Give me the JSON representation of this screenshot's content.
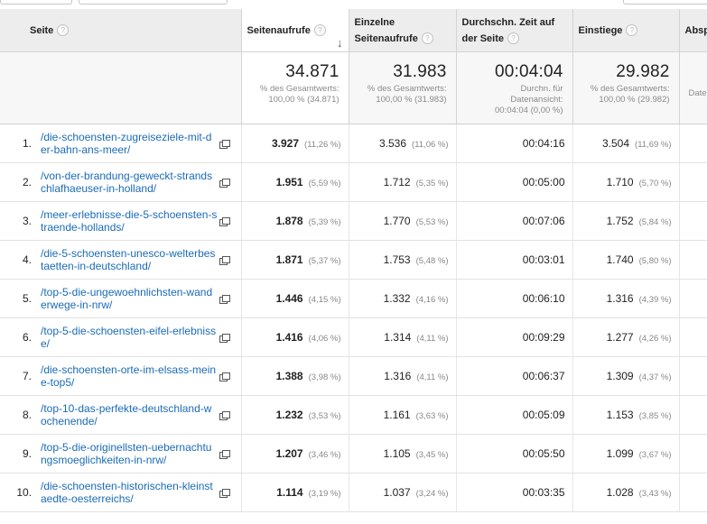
{
  "columns": {
    "page": "Seite",
    "pageviews": "Seitenaufrufe",
    "unique_pageviews": "Einzelne Seitenaufrufe",
    "avg_time": "Durchschn. Zeit auf der Seite",
    "entrances": "Einstiege",
    "bounces": "Absp"
  },
  "totals": {
    "pageviews": "34.871",
    "pageviews_sub1": "% des Gesamtwerts:",
    "pageviews_sub2": "100,00 % (34.871)",
    "unique_pageviews": "31.983",
    "unique_sub1": "% des Gesamtwerts:",
    "unique_sub2": "100,00 % (31.983)",
    "avg_time": "00:04:04",
    "avg_sub1": "Durchn. für",
    "avg_sub2": "Datenansicht:",
    "avg_sub3": "00:04:04 (0,00 %)",
    "entrances": "29.982",
    "entrances_sub1": "% des Gesamtwerts:",
    "entrances_sub2": "100,00 % (29.982)",
    "bounces_sub": "Date"
  },
  "rows": [
    {
      "idx": "1.",
      "page": "/die-schoensten-zugreiseziele-mit-der-bahn-ans-meer/",
      "pv": "3.927",
      "pv_pct": "(11,26 %)",
      "upv": "3.536",
      "upv_pct": "(11,06 %)",
      "time": "00:04:16",
      "ent": "3.504",
      "ent_pct": "(11,69 %)"
    },
    {
      "idx": "2.",
      "page": "/von-der-brandung-geweckt-strandschlafhaeuser-in-holland/",
      "pv": "1.951",
      "pv_pct": "(5,59 %)",
      "upv": "1.712",
      "upv_pct": "(5,35 %)",
      "time": "00:05:00",
      "ent": "1.710",
      "ent_pct": "(5,70 %)"
    },
    {
      "idx": "3.",
      "page": "/meer-erlebnisse-die-5-schoensten-straende-hollands/",
      "pv": "1.878",
      "pv_pct": "(5,39 %)",
      "upv": "1.770",
      "upv_pct": "(5,53 %)",
      "time": "00:07:06",
      "ent": "1.752",
      "ent_pct": "(5,84 %)"
    },
    {
      "idx": "4.",
      "page": "/die-5-schoensten-unesco-welterbestaetten-in-deutschland/",
      "pv": "1.871",
      "pv_pct": "(5,37 %)",
      "upv": "1.753",
      "upv_pct": "(5,48 %)",
      "time": "00:03:01",
      "ent": "1.740",
      "ent_pct": "(5,80 %)"
    },
    {
      "idx": "5.",
      "page": "/top-5-die-ungewoehnlichsten-wanderwege-in-nrw/",
      "pv": "1.446",
      "pv_pct": "(4,15 %)",
      "upv": "1.332",
      "upv_pct": "(4,16 %)",
      "time": "00:06:10",
      "ent": "1.316",
      "ent_pct": "(4,39 %)"
    },
    {
      "idx": "6.",
      "page": "/top-5-die-schoensten-eifel-erlebnisse/",
      "pv": "1.416",
      "pv_pct": "(4,06 %)",
      "upv": "1.314",
      "upv_pct": "(4,11 %)",
      "time": "00:09:29",
      "ent": "1.277",
      "ent_pct": "(4,26 %)"
    },
    {
      "idx": "7.",
      "page": "/die-schoensten-orte-im-elsass-meine-top5/",
      "pv": "1.388",
      "pv_pct": "(3,98 %)",
      "upv": "1.316",
      "upv_pct": "(4,11 %)",
      "time": "00:06:37",
      "ent": "1.309",
      "ent_pct": "(4,37 %)"
    },
    {
      "idx": "8.",
      "page": "/top-10-das-perfekte-deutschland-wochenende/",
      "pv": "1.232",
      "pv_pct": "(3,53 %)",
      "upv": "1.161",
      "upv_pct": "(3,63 %)",
      "time": "00:05:09",
      "ent": "1.153",
      "ent_pct": "(3,85 %)"
    },
    {
      "idx": "9.",
      "page": "/top-5-die-originellsten-uebernachtungsmoeglichkeiten-in-nrw/",
      "pv": "1.207",
      "pv_pct": "(3,46 %)",
      "upv": "1.105",
      "upv_pct": "(3,45 %)",
      "time": "00:05:50",
      "ent": "1.099",
      "ent_pct": "(3,67 %)"
    },
    {
      "idx": "10.",
      "page": "/die-schoensten-historischen-kleinstaedte-oesterreichs/",
      "pv": "1.114",
      "pv_pct": "(3,19 %)",
      "upv": "1.037",
      "upv_pct": "(3,24 %)",
      "time": "00:03:35",
      "ent": "1.028",
      "ent_pct": "(3,43 %)"
    }
  ],
  "icons": {
    "help": "help-circle-icon",
    "sort": "sort-down-arrow-icon",
    "external": "external-link-icon"
  },
  "colors": {
    "link": "#1a6bb7",
    "header_bg": "#ededed"
  }
}
